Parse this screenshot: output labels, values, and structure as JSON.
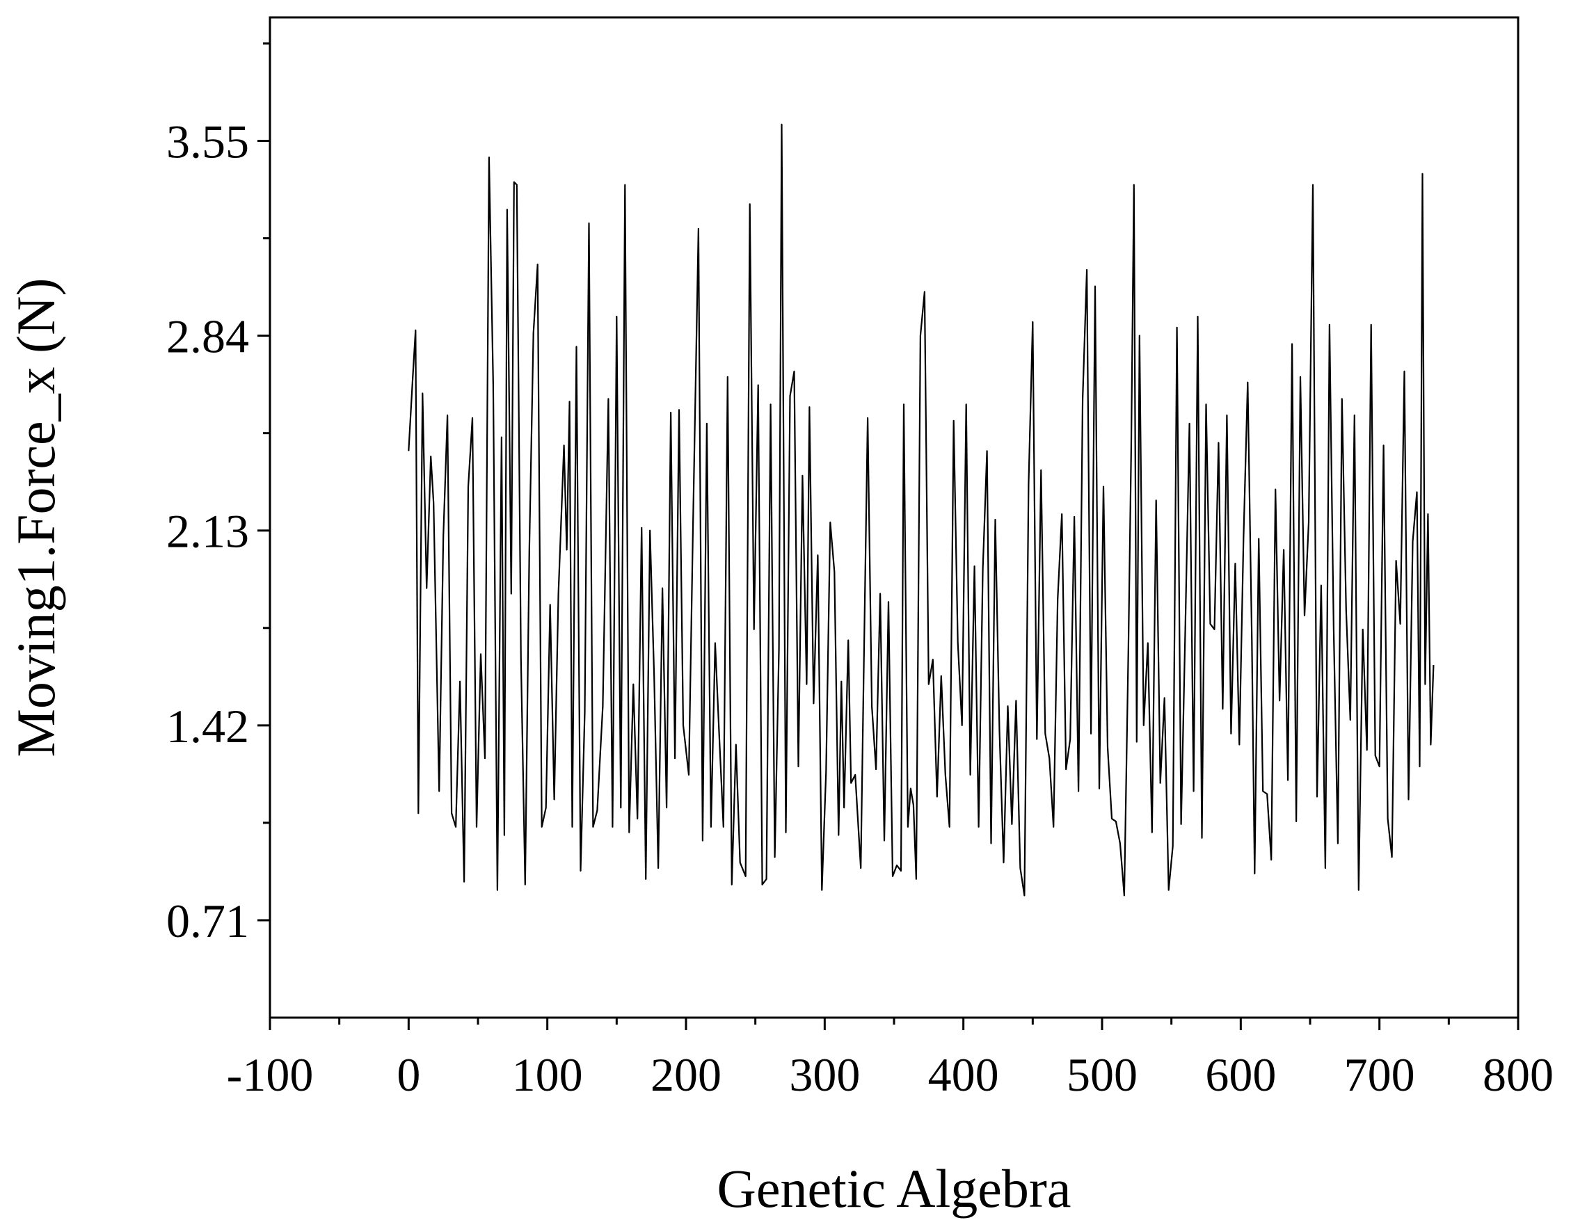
{
  "chart_data": {
    "type": "line",
    "xlabel": "Genetic Algebra",
    "ylabel": "Moving1.Force_x (N)",
    "xlim": [
      -100,
      800
    ],
    "ylim": [
      0.355,
      4.0
    ],
    "x_ticks": [
      -100,
      0,
      100,
      200,
      300,
      400,
      500,
      600,
      700,
      800
    ],
    "x_tick_labels": [
      "-100",
      "0",
      "100",
      "200",
      "300",
      "400",
      "500",
      "600",
      "700",
      "800"
    ],
    "y_ticks": [
      0.71,
      1.42,
      2.13,
      2.84,
      3.55
    ],
    "y_tick_labels": [
      "0.71",
      "1.42",
      "2.13",
      "2.84",
      "3.55"
    ],
    "grid": false,
    "legend": "none",
    "line_color": "#000000",
    "series": [
      {
        "points": [
          [
            0,
            2.42
          ],
          [
            3,
            2.69
          ],
          [
            5,
            2.86
          ],
          [
            7,
            1.1
          ],
          [
            10,
            2.63
          ],
          [
            13,
            1.92
          ],
          [
            16,
            2.4
          ],
          [
            18,
            2.23
          ],
          [
            22,
            1.18
          ],
          [
            25,
            2.11
          ],
          [
            28,
            2.55
          ],
          [
            31,
            1.1
          ],
          [
            34,
            1.05
          ],
          [
            37,
            1.58
          ],
          [
            40,
            0.85
          ],
          [
            43,
            2.29
          ],
          [
            46,
            2.54
          ],
          [
            49,
            1.05
          ],
          [
            52,
            1.68
          ],
          [
            55,
            1.3
          ],
          [
            58,
            3.49
          ],
          [
            61,
            2.66
          ],
          [
            64,
            0.82
          ],
          [
            67,
            2.47
          ],
          [
            69,
            1.02
          ],
          [
            71,
            3.3
          ],
          [
            74,
            1.9
          ],
          [
            76,
            3.4
          ],
          [
            78,
            3.39
          ],
          [
            81,
            1.66
          ],
          [
            84,
            0.84
          ],
          [
            87,
            2.06
          ],
          [
            90,
            2.85
          ],
          [
            93,
            3.1
          ],
          [
            96,
            1.05
          ],
          [
            99,
            1.12
          ],
          [
            102,
            1.86
          ],
          [
            105,
            1.15
          ],
          [
            108,
            1.9
          ],
          [
            112,
            2.44
          ],
          [
            114,
            2.06
          ],
          [
            116,
            2.6
          ],
          [
            118,
            1.05
          ],
          [
            121,
            2.8
          ],
          [
            124,
            0.89
          ],
          [
            127,
            1.47
          ],
          [
            130,
            3.25
          ],
          [
            133,
            1.05
          ],
          [
            136,
            1.11
          ],
          [
            140,
            1.49
          ],
          [
            144,
            2.61
          ],
          [
            147,
            1.05
          ],
          [
            150,
            2.91
          ],
          [
            153,
            1.12
          ],
          [
            156,
            3.39
          ],
          [
            159,
            1.03
          ],
          [
            162,
            1.57
          ],
          [
            165,
            1.08
          ],
          [
            168,
            2.14
          ],
          [
            171,
            0.86
          ],
          [
            174,
            2.13
          ],
          [
            177,
            1.6
          ],
          [
            180,
            0.9
          ],
          [
            183,
            1.92
          ],
          [
            186,
            1.12
          ],
          [
            189,
            2.56
          ],
          [
            192,
            1.3
          ],
          [
            195,
            2.57
          ],
          [
            198,
            1.42
          ],
          [
            202,
            1.24
          ],
          [
            205,
            2.14
          ],
          [
            209,
            3.23
          ],
          [
            212,
            1.0
          ],
          [
            215,
            2.52
          ],
          [
            218,
            1.05
          ],
          [
            221,
            1.72
          ],
          [
            224,
            1.38
          ],
          [
            227,
            1.05
          ],
          [
            230,
            2.69
          ],
          [
            233,
            0.84
          ],
          [
            236,
            1.35
          ],
          [
            239,
            0.92
          ],
          [
            243,
            0.87
          ],
          [
            246,
            3.32
          ],
          [
            249,
            1.77
          ],
          [
            252,
            2.66
          ],
          [
            255,
            0.84
          ],
          [
            258,
            0.86
          ],
          [
            261,
            2.59
          ],
          [
            264,
            0.94
          ],
          [
            267,
            1.7
          ],
          [
            269,
            3.61
          ],
          [
            272,
            1.03
          ],
          [
            275,
            2.62
          ],
          [
            278,
            2.71
          ],
          [
            281,
            1.27
          ],
          [
            284,
            2.33
          ],
          [
            287,
            1.57
          ],
          [
            289,
            2.58
          ],
          [
            292,
            1.5
          ],
          [
            295,
            2.04
          ],
          [
            298,
            0.82
          ],
          [
            301,
            1.25
          ],
          [
            304,
            2.16
          ],
          [
            307,
            1.98
          ],
          [
            310,
            1.02
          ],
          [
            312,
            1.58
          ],
          [
            314,
            1.12
          ],
          [
            317,
            1.73
          ],
          [
            319,
            1.21
          ],
          [
            322,
            1.24
          ],
          [
            326,
            0.9
          ],
          [
            328,
            1.56
          ],
          [
            331,
            2.54
          ],
          [
            334,
            1.49
          ],
          [
            337,
            1.26
          ],
          [
            340,
            1.9
          ],
          [
            343,
            1.0
          ],
          [
            346,
            1.87
          ],
          [
            349,
            0.87
          ],
          [
            352,
            0.91
          ],
          [
            355,
            0.89
          ],
          [
            357,
            2.59
          ],
          [
            360,
            1.05
          ],
          [
            362,
            1.19
          ],
          [
            364,
            1.13
          ],
          [
            366,
            0.86
          ],
          [
            369,
            2.84
          ],
          [
            372,
            3.0
          ],
          [
            375,
            1.57
          ],
          [
            378,
            1.66
          ],
          [
            381,
            1.16
          ],
          [
            384,
            1.6
          ],
          [
            387,
            1.24
          ],
          [
            390,
            1.05
          ],
          [
            393,
            2.53
          ],
          [
            396,
            1.72
          ],
          [
            399,
            1.42
          ],
          [
            402,
            2.59
          ],
          [
            405,
            1.24
          ],
          [
            408,
            2.0
          ],
          [
            411,
            1.05
          ],
          [
            414,
            1.99
          ],
          [
            417,
            2.42
          ],
          [
            420,
            0.99
          ],
          [
            423,
            2.17
          ],
          [
            426,
            1.4
          ],
          [
            429,
            0.92
          ],
          [
            432,
            1.49
          ],
          [
            435,
            1.06
          ],
          [
            438,
            1.51
          ],
          [
            441,
            0.9
          ],
          [
            444,
            0.8
          ],
          [
            447,
            2.3
          ],
          [
            450,
            2.89
          ],
          [
            453,
            1.37
          ],
          [
            456,
            2.35
          ],
          [
            459,
            1.39
          ],
          [
            462,
            1.3
          ],
          [
            465,
            1.05
          ],
          [
            468,
            1.88
          ],
          [
            471,
            2.19
          ],
          [
            474,
            1.26
          ],
          [
            477,
            1.37
          ],
          [
            480,
            2.18
          ],
          [
            483,
            1.18
          ],
          [
            486,
            2.61
          ],
          [
            489,
            3.08
          ],
          [
            492,
            1.39
          ],
          [
            495,
            3.02
          ],
          [
            498,
            1.19
          ],
          [
            501,
            2.29
          ],
          [
            504,
            1.34
          ],
          [
            507,
            1.08
          ],
          [
            510,
            1.07
          ],
          [
            513,
            0.99
          ],
          [
            516,
            0.8
          ],
          [
            519,
            1.71
          ],
          [
            521,
            2.43
          ],
          [
            523,
            3.39
          ],
          [
            525,
            1.36
          ],
          [
            527,
            2.84
          ],
          [
            530,
            1.42
          ],
          [
            533,
            1.72
          ],
          [
            536,
            1.03
          ],
          [
            539,
            2.24
          ],
          [
            542,
            1.21
          ],
          [
            545,
            1.52
          ],
          [
            548,
            0.82
          ],
          [
            551,
            0.98
          ],
          [
            554,
            2.87
          ],
          [
            557,
            1.06
          ],
          [
            560,
            1.77
          ],
          [
            563,
            2.52
          ],
          [
            566,
            1.18
          ],
          [
            569,
            2.91
          ],
          [
            572,
            1.01
          ],
          [
            575,
            2.59
          ],
          [
            578,
            1.79
          ],
          [
            581,
            1.77
          ],
          [
            584,
            2.45
          ],
          [
            587,
            1.48
          ],
          [
            590,
            2.55
          ],
          [
            593,
            1.39
          ],
          [
            596,
            2.01
          ],
          [
            599,
            1.35
          ],
          [
            602,
            2.1
          ],
          [
            605,
            2.67
          ],
          [
            608,
            1.73
          ],
          [
            610,
            0.88
          ],
          [
            613,
            2.1
          ],
          [
            616,
            1.18
          ],
          [
            619,
            1.17
          ],
          [
            622,
            0.93
          ],
          [
            625,
            2.28
          ],
          [
            628,
            1.51
          ],
          [
            631,
            2.06
          ],
          [
            634,
            1.22
          ],
          [
            637,
            2.81
          ],
          [
            640,
            1.07
          ],
          [
            643,
            2.69
          ],
          [
            646,
            1.82
          ],
          [
            649,
            2.16
          ],
          [
            652,
            3.39
          ],
          [
            655,
            1.16
          ],
          [
            658,
            1.93
          ],
          [
            661,
            0.9
          ],
          [
            664,
            2.88
          ],
          [
            667,
            1.77
          ],
          [
            670,
            0.99
          ],
          [
            673,
            2.61
          ],
          [
            676,
            1.84
          ],
          [
            679,
            1.44
          ],
          [
            682,
            2.55
          ],
          [
            685,
            0.82
          ],
          [
            688,
            1.77
          ],
          [
            691,
            1.33
          ],
          [
            694,
            2.88
          ],
          [
            697,
            1.31
          ],
          [
            700,
            1.27
          ],
          [
            703,
            2.44
          ],
          [
            706,
            1.08
          ],
          [
            709,
            0.94
          ],
          [
            712,
            2.02
          ],
          [
            715,
            1.79
          ],
          [
            718,
            2.71
          ],
          [
            721,
            1.15
          ],
          [
            724,
            2.09
          ],
          [
            727,
            2.27
          ],
          [
            729,
            1.27
          ],
          [
            731,
            3.43
          ],
          [
            733,
            1.57
          ],
          [
            735,
            2.19
          ],
          [
            737,
            1.35
          ],
          [
            739,
            1.64
          ]
        ]
      }
    ]
  }
}
